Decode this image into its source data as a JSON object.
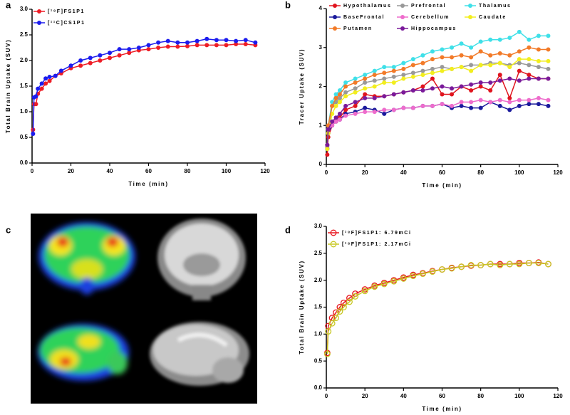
{
  "chart_data": [
    {
      "type": "line",
      "label": "a",
      "xlabel": "Time (min)",
      "ylabel": "Total Brain Uptake (SUV)",
      "xlim": [
        0,
        120
      ],
      "xticks": [
        0,
        20,
        40,
        60,
        80,
        100,
        120
      ],
      "ylim": [
        0,
        3
      ],
      "yticks": [
        {
          "value": 0,
          "label": "0.0"
        },
        {
          "value": 0.5,
          "label": "0.5"
        },
        {
          "value": 1,
          "label": "1.0"
        },
        {
          "value": 1.5,
          "label": "1.5"
        },
        {
          "value": 2,
          "label": "2.0"
        },
        {
          "value": 2.5,
          "label": "2.5"
        },
        {
          "value": 3,
          "label": "3.0"
        }
      ],
      "marker": "filled",
      "legend_columns": 1,
      "x": [
        0.5,
        1,
        2,
        3,
        5,
        7,
        9,
        12,
        15,
        20,
        25,
        30,
        35,
        40,
        45,
        50,
        55,
        60,
        65,
        70,
        75,
        80,
        85,
        90,
        95,
        100,
        105,
        110,
        115
      ],
      "series": [
        {
          "name": "[¹⁸F]FS1P1",
          "color": "#ee1c25",
          "values": [
            0.65,
            1.15,
            1.15,
            1.35,
            1.45,
            1.55,
            1.6,
            1.7,
            1.75,
            1.85,
            1.9,
            1.95,
            2.0,
            2.05,
            2.1,
            2.15,
            2.2,
            2.22,
            2.25,
            2.27,
            2.27,
            2.28,
            2.3,
            2.3,
            2.3,
            2.3,
            2.32,
            2.32,
            2.3
          ]
        },
        {
          "name": "[¹¹C]CS1P1",
          "color": "#1c1cee",
          "values": [
            0.57,
            1.28,
            1.3,
            1.45,
            1.55,
            1.65,
            1.68,
            1.7,
            1.8,
            1.9,
            2.0,
            2.05,
            2.1,
            2.15,
            2.22,
            2.22,
            2.25,
            2.3,
            2.35,
            2.38,
            2.35,
            2.35,
            2.38,
            2.42,
            2.4,
            2.4,
            2.38,
            2.4,
            2.35
          ]
        }
      ]
    },
    {
      "type": "line",
      "label": "b",
      "xlabel": "Time (min)",
      "ylabel": "Tracer Uptake (SUV)",
      "xlim": [
        0,
        120
      ],
      "xticks": [
        0,
        20,
        40,
        60,
        80,
        100,
        120
      ],
      "ylim": [
        0,
        4
      ],
      "yticks": [
        0,
        1,
        2,
        3,
        4
      ],
      "marker": "filled",
      "legend_columns": 3,
      "x": [
        0.5,
        1,
        3,
        5,
        7,
        10,
        15,
        20,
        25,
        30,
        35,
        40,
        45,
        50,
        55,
        60,
        65,
        70,
        75,
        80,
        85,
        90,
        95,
        100,
        105,
        110,
        115
      ],
      "series": [
        {
          "name": "Hypothalamus",
          "color": "#e0141e",
          "values": [
            0.25,
            0.7,
            1.0,
            1.1,
            1.2,
            1.4,
            1.5,
            1.8,
            1.75,
            1.75,
            1.8,
            1.85,
            1.9,
            2.0,
            2.2,
            1.8,
            1.8,
            2.0,
            1.9,
            2.0,
            1.9,
            2.3,
            1.7,
            2.4,
            2.3,
            2.2,
            2.2
          ]
        },
        {
          "name": "Prefrontal",
          "color": "#999999",
          "values": [
            0.45,
            0.9,
            1.5,
            1.6,
            1.7,
            1.85,
            1.95,
            2.1,
            2.15,
            2.2,
            2.25,
            2.3,
            2.35,
            2.4,
            2.45,
            2.5,
            2.45,
            2.5,
            2.55,
            2.55,
            2.6,
            2.6,
            2.55,
            2.6,
            2.55,
            2.5,
            2.45
          ]
        },
        {
          "name": "Thalamus",
          "color": "#3fe0e8",
          "values": [
            0.5,
            1.0,
            1.6,
            1.8,
            1.9,
            2.1,
            2.2,
            2.3,
            2.4,
            2.5,
            2.5,
            2.6,
            2.7,
            2.8,
            2.9,
            2.95,
            3.0,
            3.1,
            3.0,
            3.15,
            3.2,
            3.2,
            3.25,
            3.4,
            3.2,
            3.3,
            3.3
          ]
        },
        {
          "name": "BaseFrontal",
          "color": "#1a1a9c",
          "values": [
            0.4,
            0.8,
            1.0,
            1.1,
            1.15,
            1.3,
            1.35,
            1.45,
            1.4,
            1.3,
            1.4,
            1.45,
            1.45,
            1.5,
            1.5,
            1.55,
            1.45,
            1.5,
            1.45,
            1.45,
            1.6,
            1.5,
            1.4,
            1.5,
            1.55,
            1.55,
            1.5
          ]
        },
        {
          "name": "Cerebellum",
          "color": "#ee6ccc",
          "values": [
            0.5,
            0.9,
            1.0,
            1.1,
            1.15,
            1.25,
            1.3,
            1.35,
            1.35,
            1.4,
            1.4,
            1.45,
            1.45,
            1.5,
            1.5,
            1.55,
            1.5,
            1.6,
            1.6,
            1.65,
            1.6,
            1.65,
            1.6,
            1.65,
            1.65,
            1.7,
            1.65
          ]
        },
        {
          "name": "Caudate",
          "color": "#f2ee1e",
          "values": [
            0.4,
            0.8,
            1.3,
            1.5,
            1.6,
            1.75,
            1.85,
            1.95,
            2.0,
            2.1,
            2.1,
            2.2,
            2.25,
            2.3,
            2.35,
            2.4,
            2.45,
            2.5,
            2.4,
            2.55,
            2.55,
            2.6,
            2.5,
            2.7,
            2.7,
            2.65,
            2.65
          ]
        },
        {
          "name": "Putamen",
          "color": "#f27a28",
          "values": [
            0.5,
            1.0,
            1.5,
            1.7,
            1.8,
            2.0,
            2.1,
            2.2,
            2.3,
            2.35,
            2.4,
            2.45,
            2.55,
            2.6,
            2.7,
            2.75,
            2.75,
            2.8,
            2.75,
            2.9,
            2.8,
            2.85,
            2.8,
            2.9,
            3.0,
            2.95,
            2.95
          ]
        },
        {
          "name": "Hippocampus",
          "color": "#7a1a9a",
          "values": [
            0.5,
            0.9,
            1.1,
            1.2,
            1.3,
            1.5,
            1.6,
            1.7,
            1.7,
            1.75,
            1.8,
            1.85,
            1.9,
            1.9,
            1.95,
            2.0,
            1.95,
            2.0,
            2.05,
            2.1,
            2.1,
            2.15,
            2.2,
            2.15,
            2.2,
            2.2,
            2.2
          ]
        }
      ]
    },
    {
      "type": "image",
      "label": "c"
    },
    {
      "type": "line",
      "label": "d",
      "xlabel": "Time (min)",
      "ylabel": "Total Brain Uptake (SUV)",
      "xlim": [
        0,
        120
      ],
      "xticks": [
        0,
        20,
        40,
        60,
        80,
        100,
        120
      ],
      "ylim": [
        0,
        3
      ],
      "yticks": [
        {
          "value": 0,
          "label": "0.0"
        },
        {
          "value": 0.5,
          "label": "0.5"
        },
        {
          "value": 1,
          "label": "1.0"
        },
        {
          "value": 1.5,
          "label": "1.5"
        },
        {
          "value": 2,
          "label": "2.0"
        },
        {
          "value": 2.5,
          "label": "2.5"
        },
        {
          "value": 3,
          "label": "3.0"
        }
      ],
      "marker": "open",
      "legend_columns": 1,
      "x": [
        0.5,
        1,
        3,
        5,
        7,
        9,
        12,
        15,
        20,
        25,
        30,
        35,
        40,
        45,
        50,
        55,
        60,
        65,
        70,
        75,
        80,
        85,
        90,
        95,
        100,
        105,
        110,
        115
      ],
      "series": [
        {
          "name": "[¹⁸F]FS1P1: 6.79mCi",
          "color": "#e8141e",
          "values": [
            0.65,
            1.15,
            1.3,
            1.4,
            1.5,
            1.58,
            1.67,
            1.75,
            1.83,
            1.9,
            1.95,
            2.0,
            2.05,
            2.1,
            2.13,
            2.17,
            2.2,
            2.23,
            2.25,
            2.27,
            2.28,
            2.3,
            2.3,
            2.3,
            2.32,
            2.32,
            2.33,
            2.3
          ]
        },
        {
          "name": "[¹⁸F]FS1P1: 2.17mCi",
          "color": "#c8c826",
          "values": [
            0.63,
            1.05,
            1.2,
            1.3,
            1.42,
            1.5,
            1.6,
            1.7,
            1.8,
            1.88,
            1.93,
            1.98,
            2.03,
            2.08,
            2.12,
            2.16,
            2.2,
            2.22,
            2.25,
            2.28,
            2.28,
            2.3,
            2.28,
            2.3,
            2.3,
            2.32,
            2.32,
            2.3
          ]
        }
      ]
    }
  ]
}
